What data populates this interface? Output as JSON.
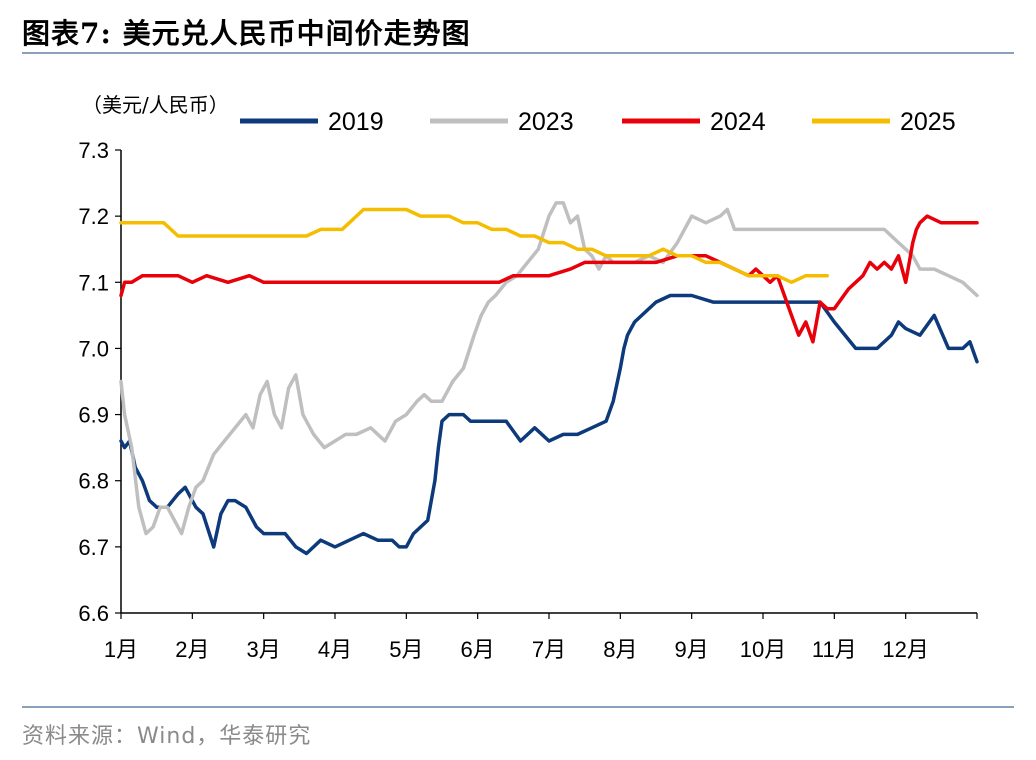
{
  "figure_title": "图表7:  美元兑人民币中间价走势图",
  "source": "资料来源：Wind，华泰研究",
  "chart_data": {
    "type": "line",
    "y_unit_label": "（美元/人民币）",
    "ylim": [
      6.6,
      7.3
    ],
    "yticks": [
      "7.3",
      "7.2",
      "7.1",
      "7.0",
      "6.9",
      "6.8",
      "6.7",
      "6.6"
    ],
    "x_tick_labels": [
      "1月",
      "2月",
      "3月",
      "4月",
      "5月",
      "6月",
      "7月",
      "8月",
      "9月",
      "10月",
      "11月",
      "12月"
    ],
    "xlim_months": [
      0,
      12
    ],
    "legend_position": "top",
    "grid": false,
    "series": [
      {
        "name": "2019",
        "color": "#0d3a7a",
        "x": [
          0.0,
          0.05,
          0.12,
          0.2,
          0.3,
          0.4,
          0.5,
          0.65,
          0.8,
          0.9,
          1.0,
          1.05,
          1.15,
          1.3,
          1.4,
          1.5,
          1.6,
          1.75,
          1.9,
          2.0,
          2.1,
          2.3,
          2.45,
          2.6,
          2.8,
          3.0,
          3.2,
          3.4,
          3.6,
          3.8,
          3.9,
          4.0,
          4.1,
          4.2,
          4.3,
          4.35,
          4.4,
          4.45,
          4.5,
          4.6,
          4.7,
          4.8,
          4.9,
          5.0,
          5.2,
          5.4,
          5.6,
          5.8,
          5.9,
          6.0,
          6.2,
          6.4,
          6.6,
          6.8,
          6.9,
          7.0,
          7.05,
          7.1,
          7.15,
          7.2,
          7.3,
          7.5,
          7.7,
          7.9,
          8.0,
          8.3,
          8.6,
          8.8,
          8.9,
          9.0,
          9.2,
          9.5,
          9.8,
          10.0,
          10.3,
          10.6,
          10.8,
          10.9,
          11.0,
          11.2,
          11.4,
          11.6,
          11.8,
          11.9,
          12.0
        ],
        "y": [
          6.86,
          6.85,
          6.86,
          6.82,
          6.8,
          6.77,
          6.76,
          6.76,
          6.78,
          6.79,
          6.77,
          6.76,
          6.75,
          6.7,
          6.75,
          6.77,
          6.77,
          6.76,
          6.73,
          6.72,
          6.72,
          6.72,
          6.7,
          6.69,
          6.71,
          6.7,
          6.71,
          6.72,
          6.71,
          6.71,
          6.7,
          6.7,
          6.72,
          6.73,
          6.74,
          6.77,
          6.8,
          6.85,
          6.89,
          6.9,
          6.9,
          6.9,
          6.89,
          6.89,
          6.89,
          6.89,
          6.86,
          6.88,
          6.87,
          6.86,
          6.87,
          6.87,
          6.88,
          6.89,
          6.92,
          6.97,
          7.0,
          7.02,
          7.03,
          7.04,
          7.05,
          7.07,
          7.08,
          7.08,
          7.08,
          7.07,
          7.07,
          7.07,
          7.07,
          7.07,
          7.07,
          7.07,
          7.07,
          7.04,
          7.0,
          7.0,
          7.02,
          7.04,
          7.03,
          7.02,
          7.05,
          7.0,
          7.0,
          7.01,
          6.98
        ]
      },
      {
        "name": "2023",
        "color": "#bfbfbf",
        "x": [
          0.0,
          0.05,
          0.15,
          0.25,
          0.35,
          0.45,
          0.55,
          0.65,
          0.75,
          0.85,
          0.95,
          1.05,
          1.15,
          1.3,
          1.45,
          1.6,
          1.75,
          1.85,
          1.95,
          2.05,
          2.15,
          2.25,
          2.35,
          2.45,
          2.55,
          2.7,
          2.85,
          3.0,
          3.15,
          3.3,
          3.5,
          3.7,
          3.85,
          4.0,
          4.15,
          4.25,
          4.35,
          4.5,
          4.65,
          4.8,
          4.95,
          5.05,
          5.15,
          5.25,
          5.4,
          5.55,
          5.7,
          5.85,
          6.0,
          6.1,
          6.2,
          6.3,
          6.4,
          6.5,
          6.6,
          6.7,
          6.8,
          6.9,
          7.0,
          7.2,
          7.4,
          7.6,
          7.8,
          8.0,
          8.2,
          8.4,
          8.5,
          8.6,
          8.75,
          8.85,
          9.0,
          9.15,
          9.3,
          9.5,
          9.7,
          9.9,
          10.1,
          10.3,
          10.5,
          10.7,
          10.9,
          11.0,
          11.1,
          11.2,
          11.4,
          11.6,
          11.8,
          12.0
        ],
        "y": [
          6.95,
          6.9,
          6.85,
          6.76,
          6.72,
          6.73,
          6.76,
          6.76,
          6.74,
          6.72,
          6.76,
          6.79,
          6.8,
          6.84,
          6.86,
          6.88,
          6.9,
          6.88,
          6.93,
          6.95,
          6.9,
          6.88,
          6.94,
          6.96,
          6.9,
          6.87,
          6.85,
          6.86,
          6.87,
          6.87,
          6.88,
          6.86,
          6.89,
          6.9,
          6.92,
          6.93,
          6.92,
          6.92,
          6.95,
          6.97,
          7.02,
          7.05,
          7.07,
          7.08,
          7.1,
          7.11,
          7.13,
          7.15,
          7.2,
          7.22,
          7.22,
          7.19,
          7.2,
          7.15,
          7.14,
          7.12,
          7.14,
          7.13,
          7.13,
          7.13,
          7.14,
          7.13,
          7.16,
          7.2,
          7.19,
          7.2,
          7.21,
          7.18,
          7.18,
          7.18,
          7.18,
          7.18,
          7.18,
          7.18,
          7.18,
          7.18,
          7.18,
          7.18,
          7.18,
          7.18,
          7.16,
          7.15,
          7.14,
          7.12,
          7.12,
          7.11,
          7.1,
          7.08
        ]
      },
      {
        "name": "2024",
        "color": "#e8000a",
        "x": [
          0.0,
          0.05,
          0.15,
          0.3,
          0.5,
          0.8,
          1.0,
          1.2,
          1.5,
          1.8,
          2.0,
          2.3,
          2.5,
          2.8,
          3.0,
          3.3,
          3.5,
          3.8,
          4.0,
          4.3,
          4.5,
          4.8,
          5.0,
          5.3,
          5.5,
          5.8,
          6.0,
          6.3,
          6.5,
          6.8,
          7.0,
          7.3,
          7.5,
          7.8,
          8.0,
          8.2,
          8.4,
          8.6,
          8.8,
          8.9,
          9.0,
          9.1,
          9.2,
          9.3,
          9.4,
          9.5,
          9.6,
          9.7,
          9.8,
          9.9,
          10.0,
          10.2,
          10.4,
          10.5,
          10.6,
          10.7,
          10.8,
          10.9,
          11.0,
          11.1,
          11.15,
          11.2,
          11.3,
          11.5,
          11.7,
          11.9,
          12.0
        ],
        "y": [
          7.08,
          7.1,
          7.1,
          7.11,
          7.11,
          7.11,
          7.1,
          7.11,
          7.1,
          7.11,
          7.1,
          7.1,
          7.1,
          7.1,
          7.1,
          7.1,
          7.1,
          7.1,
          7.1,
          7.1,
          7.1,
          7.1,
          7.1,
          7.1,
          7.11,
          7.11,
          7.11,
          7.12,
          7.13,
          7.13,
          7.13,
          7.13,
          7.13,
          7.14,
          7.14,
          7.14,
          7.13,
          7.12,
          7.11,
          7.12,
          7.11,
          7.1,
          7.11,
          7.08,
          7.05,
          7.02,
          7.04,
          7.01,
          7.07,
          7.06,
          7.06,
          7.09,
          7.11,
          7.13,
          7.12,
          7.13,
          7.12,
          7.14,
          7.1,
          7.16,
          7.18,
          7.19,
          7.2,
          7.19,
          7.19,
          7.19,
          7.19
        ]
      },
      {
        "name": "2025",
        "color": "#f5bd00",
        "x": [
          0.0,
          0.2,
          0.4,
          0.6,
          0.7,
          0.8,
          1.0,
          1.2,
          1.4,
          1.6,
          1.8,
          2.0,
          2.2,
          2.4,
          2.6,
          2.8,
          3.0,
          3.1,
          3.2,
          3.3,
          3.4,
          3.5,
          3.6,
          3.8,
          4.0,
          4.2,
          4.4,
          4.6,
          4.8,
          5.0,
          5.2,
          5.4,
          5.6,
          5.8,
          6.0,
          6.2,
          6.4,
          6.6,
          6.8,
          7.0,
          7.2,
          7.4,
          7.6,
          7.8,
          8.0,
          8.2,
          8.4,
          8.6,
          8.8,
          9.0,
          9.2,
          9.4,
          9.6,
          9.8,
          9.9
        ],
        "y": [
          7.19,
          7.19,
          7.19,
          7.19,
          7.18,
          7.17,
          7.17,
          7.17,
          7.17,
          7.17,
          7.17,
          7.17,
          7.17,
          7.17,
          7.17,
          7.18,
          7.18,
          7.18,
          7.19,
          7.2,
          7.21,
          7.21,
          7.21,
          7.21,
          7.21,
          7.2,
          7.2,
          7.2,
          7.19,
          7.19,
          7.18,
          7.18,
          7.17,
          7.17,
          7.16,
          7.16,
          7.15,
          7.15,
          7.14,
          7.14,
          7.14,
          7.14,
          7.15,
          7.14,
          7.14,
          7.13,
          7.13,
          7.12,
          7.11,
          7.11,
          7.11,
          7.1,
          7.11,
          7.11,
          7.11
        ]
      }
    ]
  }
}
